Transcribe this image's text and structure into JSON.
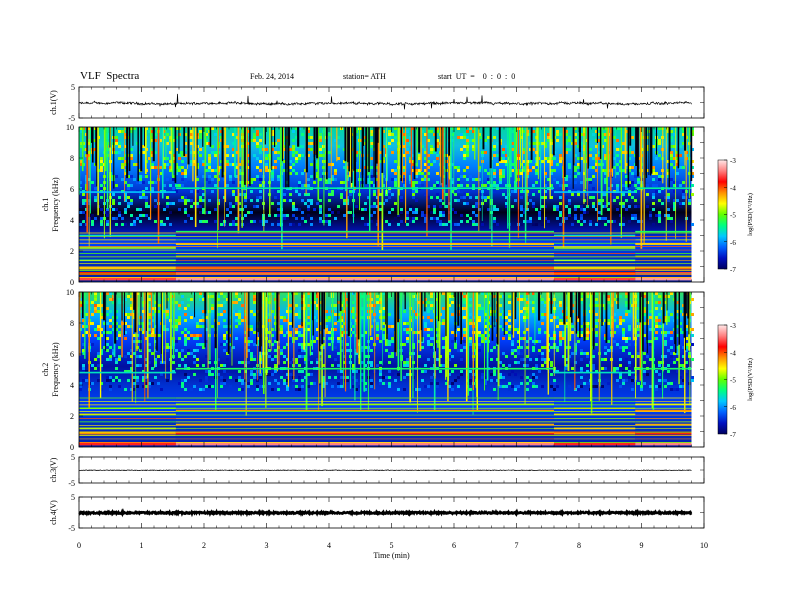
{
  "header": {
    "title": "VLF  Spectra",
    "date": "Feb. 24, 2014",
    "station": "station= ATH",
    "start": "start  UT  =    0  :  0  :  0"
  },
  "colorbar": {
    "label": "log(PSD(V²/Hz)",
    "ticks": [
      "-3",
      "-4",
      "-5",
      "-6",
      "-7"
    ],
    "colors": [
      "#000060",
      "#0010c0",
      "#0060ff",
      "#00c8ff",
      "#00ff80",
      "#60ff00",
      "#ffff00",
      "#ff9000",
      "#ff0000",
      "#ff8080",
      "#ffe8e8"
    ]
  },
  "chart_data": [
    {
      "type": "line",
      "panel": "ch.1",
      "ylabel": "ch.1(V)",
      "yticks": [
        "5",
        "-5"
      ],
      "ylim": [
        -5,
        5
      ],
      "xlim": [
        0,
        10
      ],
      "trace_end_min": 9.8,
      "baseline": -0.3,
      "noise": "high"
    },
    {
      "type": "heatmap",
      "panel": "ch.1",
      "ylabel": [
        "ch.1",
        "Frequency  (kHz)"
      ],
      "yticks": [
        "10",
        "8",
        "6",
        "4",
        "2",
        "0"
      ],
      "ylim": [
        0,
        10
      ],
      "xlim": [
        0,
        10
      ],
      "data_end_min": 9.8,
      "value_range_logPSD": [
        -7,
        -3
      ],
      "segments_min": [
        0,
        1.55,
        7.6,
        8.9,
        9.8
      ],
      "bands_kHz": [
        {
          "f": 0.2,
          "level": -3.6
        },
        {
          "f": 0.55,
          "level": -3.9
        },
        {
          "f": 0.9,
          "level": -4.4
        },
        {
          "f": 1.5,
          "level": -5.3
        },
        {
          "f": 2.3,
          "level": -4.8
        },
        {
          "f": 3.1,
          "level": -5.6
        },
        {
          "f": 5.9,
          "level": -5.8
        }
      ]
    },
    {
      "type": "heatmap",
      "panel": "ch.2",
      "ylabel": [
        "ch.2",
        "Frequency  (kHz)"
      ],
      "yticks": [
        "10",
        "8",
        "6",
        "4",
        "2",
        "0"
      ],
      "ylim": [
        0,
        10
      ],
      "xlim": [
        0,
        10
      ],
      "data_end_min": 9.8,
      "value_range_logPSD": [
        -7,
        -3
      ],
      "segments_min": [
        0,
        1.55,
        7.6,
        8.9,
        9.8
      ],
      "bands_kHz": [
        {
          "f": 0.2,
          "level": -3.7
        },
        {
          "f": 0.9,
          "level": -4.2
        },
        {
          "f": 1.3,
          "level": -4.6
        },
        {
          "f": 2.2,
          "level": -4.5
        },
        {
          "f": 2.6,
          "level": -5.0
        },
        {
          "f": 4.9,
          "level": -5.6
        }
      ]
    },
    {
      "type": "line",
      "panel": "ch.3",
      "ylabel": "ch.3(V)",
      "yticks": [
        "5",
        "-5"
      ],
      "ylim": [
        -5,
        5
      ],
      "xlim": [
        0,
        10
      ],
      "trace_end_min": 9.8,
      "baseline": -0.1,
      "noise": "low"
    },
    {
      "type": "line",
      "panel": "ch.4",
      "ylabel": "ch.4(V)",
      "yticks": [
        "5",
        "-5"
      ],
      "ylim": [
        -5,
        5
      ],
      "xlim": [
        0,
        10
      ],
      "trace_end_min": 9.8,
      "baseline": -0.1,
      "noise": "thick"
    }
  ],
  "x_axis": {
    "label": "Time  (min)",
    "ticks": [
      "0",
      "1",
      "2",
      "3",
      "4",
      "5",
      "6",
      "7",
      "8",
      "9",
      "10"
    ]
  }
}
